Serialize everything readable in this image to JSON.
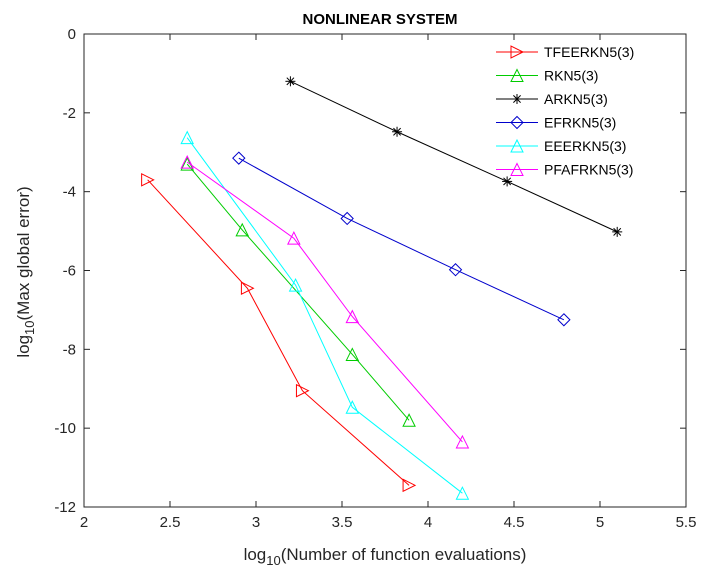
{
  "chart_data": {
    "type": "line",
    "title": "NONLINEAR SYSTEM",
    "xlabel": {
      "prefix": "log",
      "sub": "10",
      "suffix": "(Number of function evaluations)"
    },
    "ylabel": {
      "prefix": "log",
      "sub": "10",
      "suffix": "(Max global error)"
    },
    "xlim": [
      2,
      5.5
    ],
    "ylim": [
      -12,
      0
    ],
    "xticks": [
      2,
      2.5,
      3,
      3.5,
      4,
      4.5,
      5,
      5.5
    ],
    "xtick_labels": [
      "2",
      "2.5",
      "3",
      "3.5",
      "4",
      "4.5",
      "5",
      "5.5"
    ],
    "yticks": [
      0,
      -2,
      -4,
      -6,
      -8,
      -10,
      -12
    ],
    "ytick_labels": [
      "0",
      "-2",
      "-4",
      "-6",
      "-8",
      "-10",
      "-12"
    ],
    "grid": false,
    "legend_position": "top-right",
    "series": [
      {
        "name": "TFEERKN5(3)",
        "color": "#ff0000",
        "marker": "triangle-right",
        "x": [
          2.37,
          2.95,
          3.27,
          3.89
        ],
        "y": [
          -3.7,
          -6.45,
          -9.05,
          -11.45
        ]
      },
      {
        "name": "RKN5(3)",
        "color": "#00cc00",
        "marker": "triangle-up",
        "x": [
          2.6,
          2.92,
          3.56,
          3.89
        ],
        "y": [
          -3.3,
          -4.97,
          -8.13,
          -9.8
        ]
      },
      {
        "name": "ARKN5(3)",
        "color": "#000000",
        "marker": "asterisk",
        "x": [
          3.2,
          3.82,
          4.46,
          5.1
        ],
        "y": [
          -1.2,
          -2.48,
          -3.74,
          -5.02
        ]
      },
      {
        "name": "EFRKN5(3)",
        "color": "#0000cc",
        "marker": "diamond",
        "x": [
          2.9,
          3.53,
          4.16,
          4.79
        ],
        "y": [
          -3.15,
          -4.68,
          -5.98,
          -7.25
        ]
      },
      {
        "name": "EEERKN5(3)",
        "color": "#00ffff",
        "marker": "triangle-up",
        "x": [
          2.6,
          3.23,
          3.56,
          4.2
        ],
        "y": [
          -2.63,
          -6.37,
          -9.47,
          -11.65
        ]
      },
      {
        "name": "PFAFRKN5(3)",
        "color": "#ff00ff",
        "marker": "triangle-up",
        "x": [
          2.6,
          3.22,
          3.56,
          4.2
        ],
        "y": [
          -3.25,
          -5.18,
          -7.17,
          -10.35
        ]
      }
    ]
  }
}
